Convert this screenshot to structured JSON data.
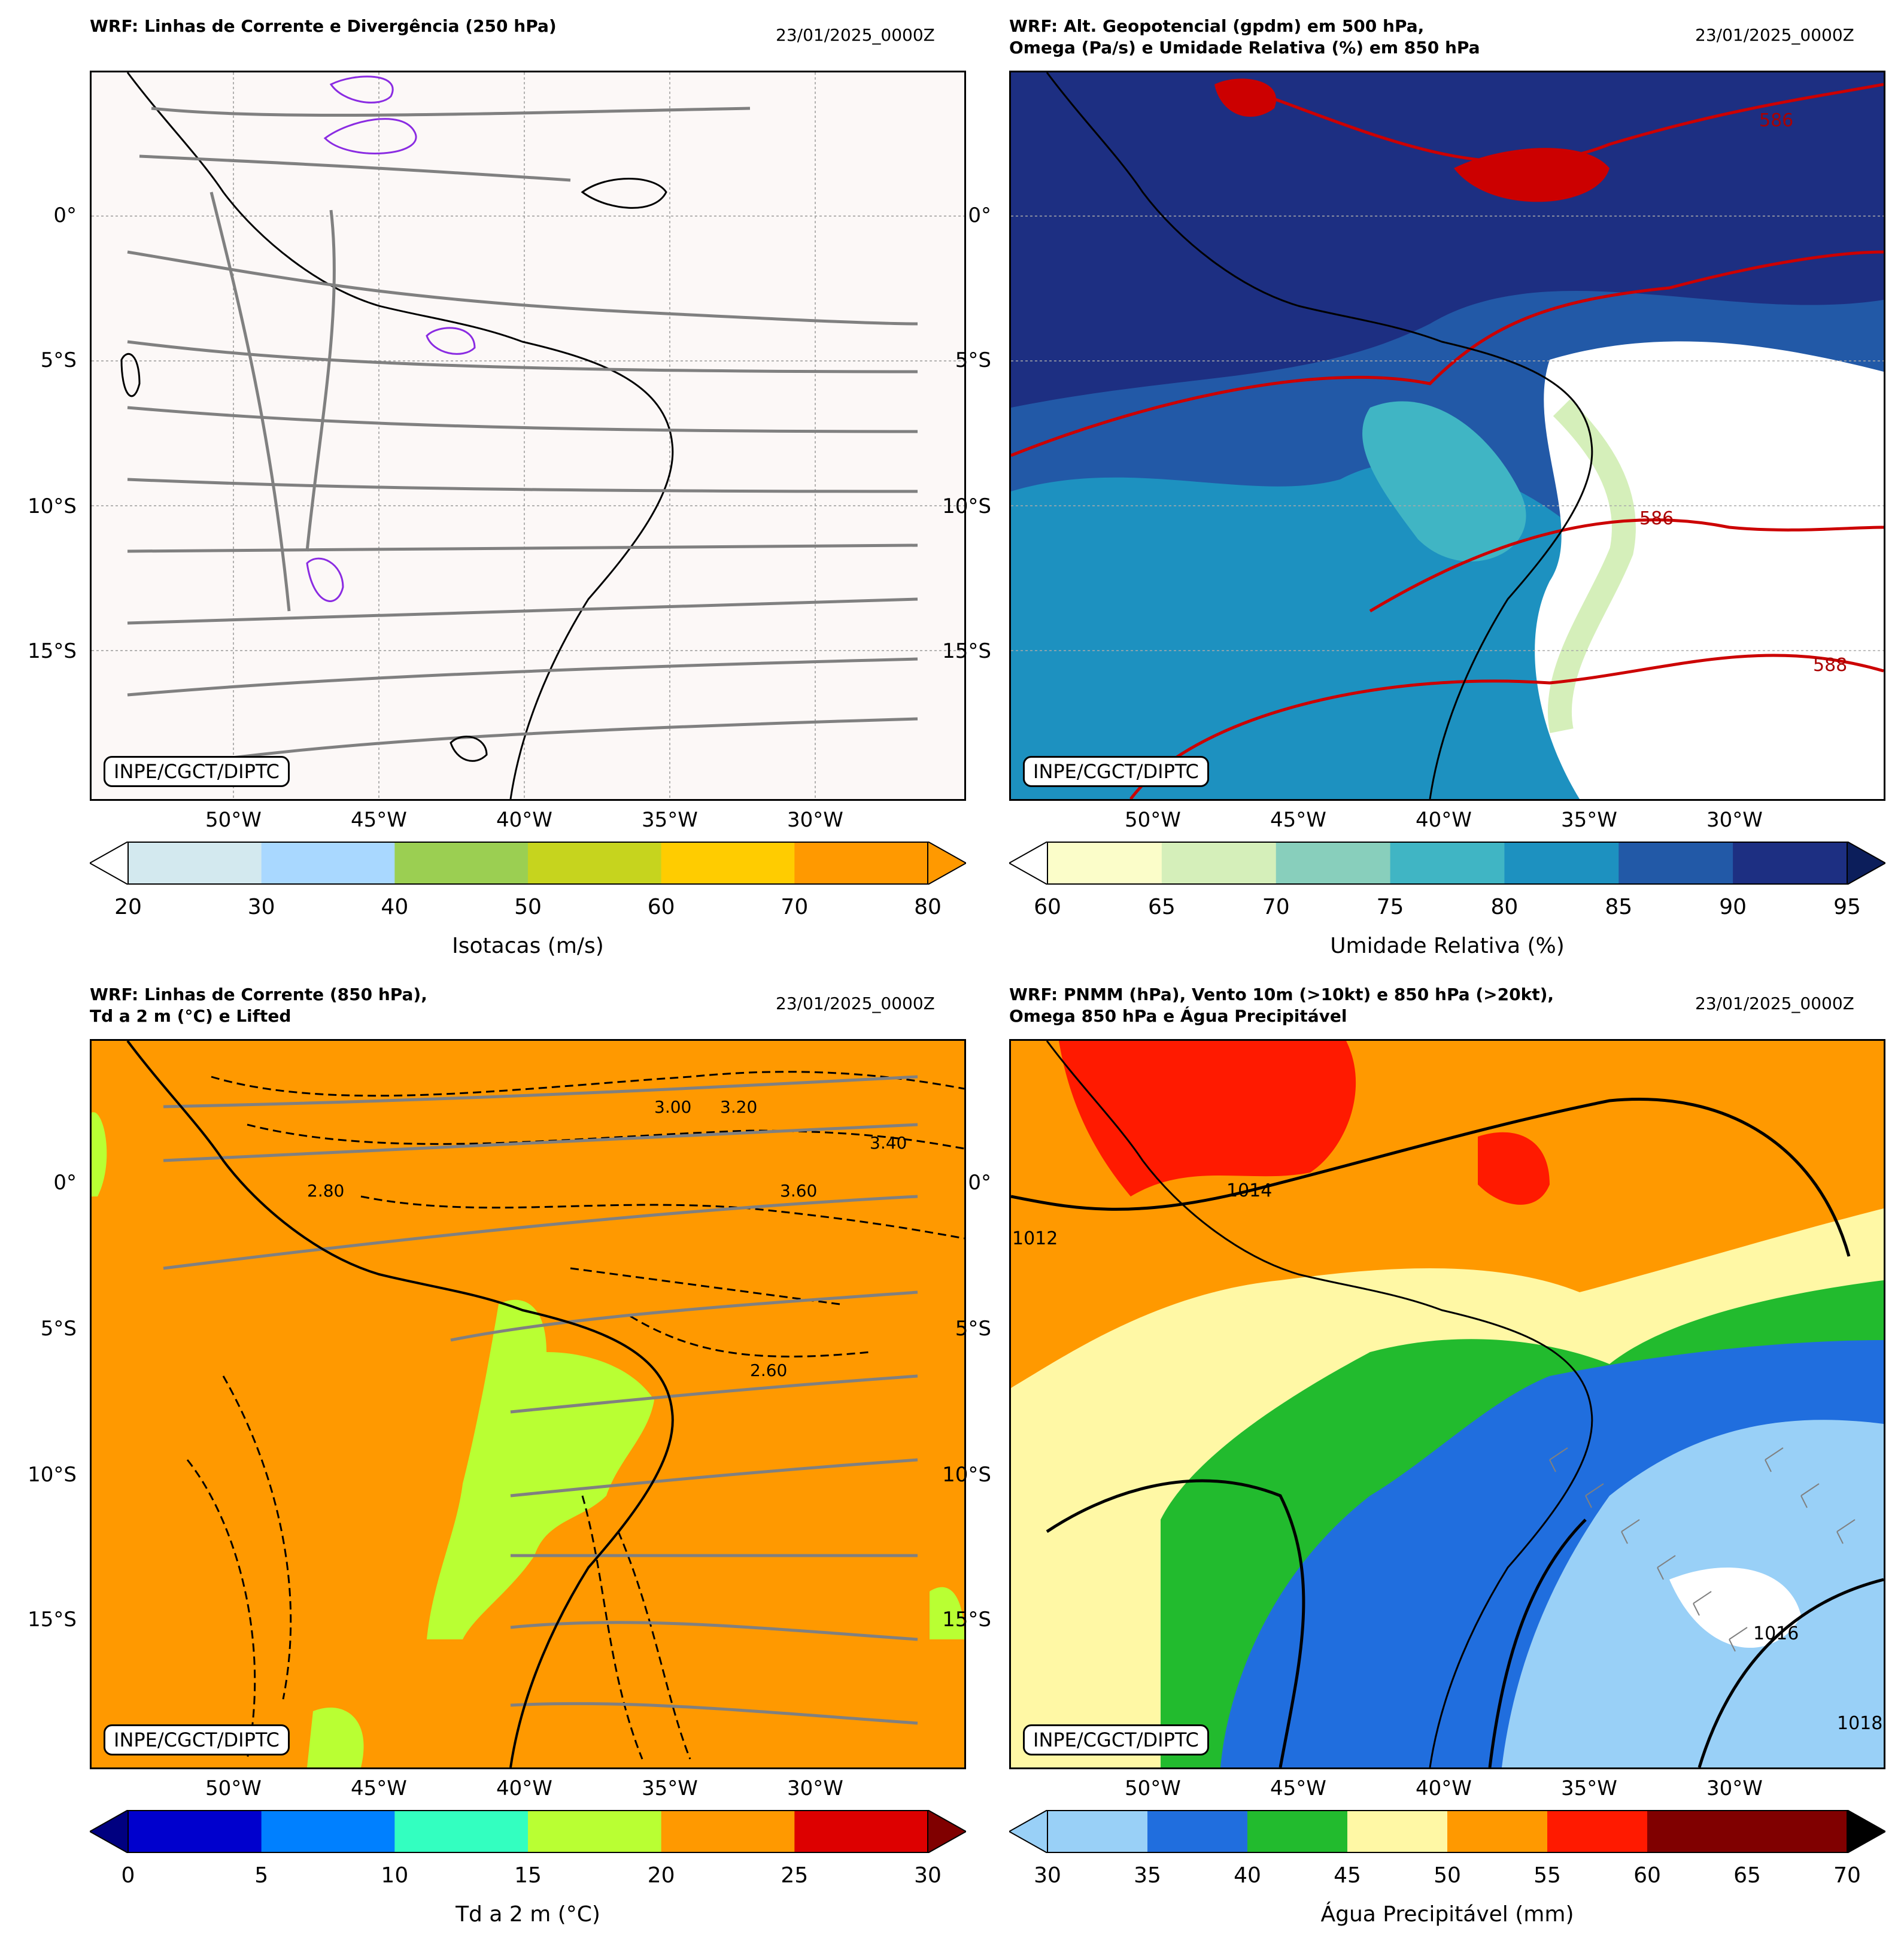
{
  "panels": [
    {
      "title": "WRF: Linhas de Corrente e Divergência (250 hPa)",
      "date": "23/01/2025_0000Z",
      "credit": "INPE/CGCT/DIPTC",
      "map_background": "#fcf8f7",
      "colorbar": {
        "label": "Isotacas (m/s)",
        "ticks": [
          "20",
          "30",
          "40",
          "50",
          "60",
          "70",
          "80"
        ],
        "colors": [
          "#d3e9ef",
          "#a9d8ff",
          "#9bcf52",
          "#c6d41e",
          "#ffcc00",
          "#ff9900"
        ],
        "under_color": "#ffffff",
        "over_color": "#ff9900"
      }
    },
    {
      "title": "WRF: Alt. Geopotencial (gpdm) em 500 hPa,\nOmega (Pa/s) e Umidade Relativa (%) em 850 hPa",
      "date": "23/01/2025_0000Z",
      "credit": "INPE/CGCT/DIPTC",
      "contour_labels": [
        "586",
        "588",
        "586"
      ],
      "colorbar": {
        "label": "Umidade Relativa (%)",
        "ticks": [
          "60",
          "65",
          "70",
          "75",
          "80",
          "85",
          "90",
          "95"
        ],
        "colors": [
          "#fbfdc9",
          "#d5efba",
          "#88cfbc",
          "#40b5c4",
          "#1d91c0",
          "#2259a7",
          "#1d2f82"
        ],
        "under_color": "#ffffff",
        "over_color": "#0c1e5b"
      }
    },
    {
      "title": "WRF: Linhas de Corrente (850 hPa),\nTd a 2 m (°C) e Lifted",
      "date": "23/01/2025_0000Z",
      "credit": "INPE/CGCT/DIPTC",
      "contour_labels": [
        "3.00",
        "2.80",
        "2.60",
        "3.20",
        "3.40",
        "3.60"
      ],
      "colorbar": {
        "label": "Td a 2 m (°C)",
        "ticks": [
          "0",
          "5",
          "10",
          "15",
          "20",
          "25",
          "30"
        ],
        "colors": [
          "#0000cd",
          "#0080ff",
          "#33ffc0",
          "#b9ff33",
          "#ff9900",
          "#dd0000"
        ],
        "under_color": "#000080",
        "over_color": "#800000"
      }
    },
    {
      "title": "WRF: PNMM (hPa), Vento 10m (>10kt) e 850 hPa (>20kt),\nOmega 850 hPa e Água Precipitável",
      "date": "23/01/2025_0000Z",
      "credit": "INPE/CGCT/DIPTC",
      "contour_labels": [
        "1012",
        "1014",
        "1016",
        "1018"
      ],
      "colorbar": {
        "label": "Água Precipitável (mm)",
        "ticks": [
          "30",
          "35",
          "40",
          "45",
          "50",
          "55",
          "60",
          "65",
          "70"
        ],
        "colors": [
          "#99d0f7",
          "#206ede",
          "#22bb2e",
          "#fff8a5",
          "#ff9900",
          "#ff1a00",
          "#800000",
          "#800000"
        ],
        "under_color": "#99d0f7",
        "over_color": "#000000"
      }
    }
  ],
  "lat_ticks": [
    "0°",
    "5°S",
    "10°S",
    "15°S"
  ],
  "lon_ticks": [
    "50°W",
    "45°W",
    "40°W",
    "35°W",
    "30°W"
  ]
}
